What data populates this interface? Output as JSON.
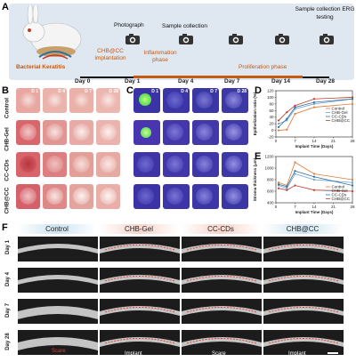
{
  "panels": {
    "a": "A",
    "b": "B",
    "c": "C",
    "d": "D",
    "e": "E",
    "f": "F"
  },
  "timeline": {
    "bacterial_keratitis": "Bacterial Keratitis",
    "chb_cc_implantation": "CHB@CC implantation",
    "inflammation_phase": "Inflammation phase",
    "proliferation_phase": "Proliferation phase",
    "photograph": "Photograph",
    "sample_collection": "Sample collection",
    "sample_collection_erg": "Sample collection ERG testing",
    "days": [
      "Day 0",
      "Day 1",
      "Day 4",
      "Day 7",
      "Day 14",
      "Day 28"
    ]
  },
  "panel_b": {
    "rows": [
      "Control",
      "CHB-Gel",
      "CC-CDs",
      "CHB@CC"
    ],
    "day_tags": [
      "D 1",
      "D 4",
      "D 7",
      "D 28"
    ]
  },
  "panel_c": {
    "day_tags": [
      "D 1",
      "D 4",
      "D 7",
      "D 28"
    ]
  },
  "panel_f": {
    "columns": [
      "Control",
      "CHB-Gel",
      "CC-CDs",
      "CHB@CC"
    ],
    "rows": [
      "Day 1",
      "Day 4",
      "Day 7",
      "Day 28"
    ],
    "scare_label": "Scare",
    "implant_label": "Implant"
  },
  "colors": {
    "control": "#e07b39",
    "chb_gel": "#6b9fd4",
    "cc_cds": "#2f6f9f",
    "chb_cc": "#c0392b",
    "accent_orange": "#c65a11"
  },
  "chart_data": [
    {
      "type": "line",
      "panel": "D",
      "ylabel": "Epithelization ratio (%)",
      "xlabel": "Implant Time (Days)",
      "x": [
        1,
        4,
        7,
        14,
        28
      ],
      "xticks": [
        0,
        7,
        14,
        21,
        28
      ],
      "yticks": [
        -20,
        0,
        20,
        40,
        60,
        80,
        100,
        120
      ],
      "ylim": [
        -20,
        120
      ],
      "legend_position": "center-right",
      "series": [
        {
          "name": "Control",
          "values": [
            0,
            2,
            50,
            70,
            80
          ]
        },
        {
          "name": "CHB-Gel",
          "values": [
            20,
            30,
            65,
            80,
            95
          ]
        },
        {
          "name": "CC-CDs",
          "values": [
            10,
            35,
            70,
            85,
            95
          ]
        },
        {
          "name": "CHB@CC",
          "values": [
            30,
            55,
            75,
            95,
            100
          ]
        }
      ]
    },
    {
      "type": "line",
      "panel": "E",
      "ylabel": "Stroma thickness (μm)",
      "xlabel": "Implant Time (Days)",
      "x": [
        1,
        4,
        7,
        14,
        28
      ],
      "xticks": [
        0,
        7,
        14,
        21,
        28
      ],
      "yticks": [
        400,
        600,
        800,
        1000,
        1200
      ],
      "ylim": [
        400,
        1200
      ],
      "legend_position": "bottom-right",
      "series": [
        {
          "name": "Control",
          "values": [
            750,
            700,
            1100,
            900,
            800
          ]
        },
        {
          "name": "CHB-Gel",
          "values": [
            700,
            650,
            900,
            800,
            750
          ]
        },
        {
          "name": "CC-CDs",
          "values": [
            720,
            680,
            950,
            850,
            700
          ]
        },
        {
          "name": "CHB@CC",
          "values": [
            650,
            620,
            700,
            620,
            600
          ]
        }
      ]
    }
  ]
}
